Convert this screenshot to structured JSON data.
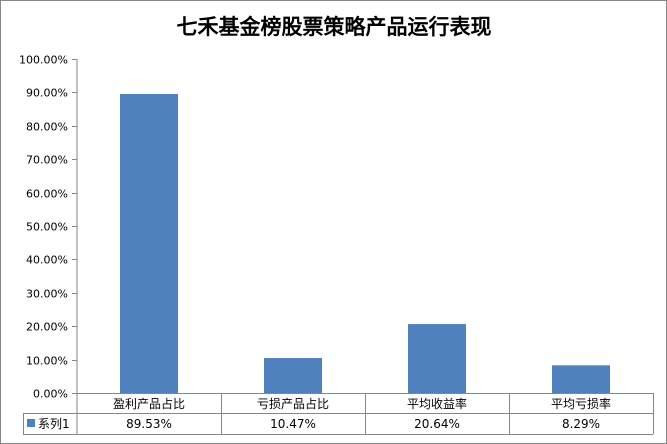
{
  "chart_data": {
    "type": "bar",
    "title": "七禾基金榜股票策略产品运行表现",
    "categories": [
      "盈利产品占比",
      "亏损产品占比",
      "平均收益率",
      "平均亏损率"
    ],
    "series": [
      {
        "name": "系列1",
        "values": [
          89.53,
          10.47,
          20.64,
          8.29
        ],
        "value_labels": [
          "89.53%",
          "10.47%",
          "20.64%",
          "8.29%"
        ],
        "color": "#4f81bd"
      }
    ],
    "ylim": [
      0,
      100
    ],
    "y_ticks": [
      0,
      10,
      20,
      30,
      40,
      50,
      60,
      70,
      80,
      90,
      100
    ],
    "y_tick_labels": [
      "0.00%",
      "10.00%",
      "20.00%",
      "30.00%",
      "40.00%",
      "50.00%",
      "60.00%",
      "70.00%",
      "80.00%",
      "90.00%",
      "100.00%"
    ],
    "grid": false,
    "legend": "data-table",
    "xlabel": "",
    "ylabel": ""
  }
}
